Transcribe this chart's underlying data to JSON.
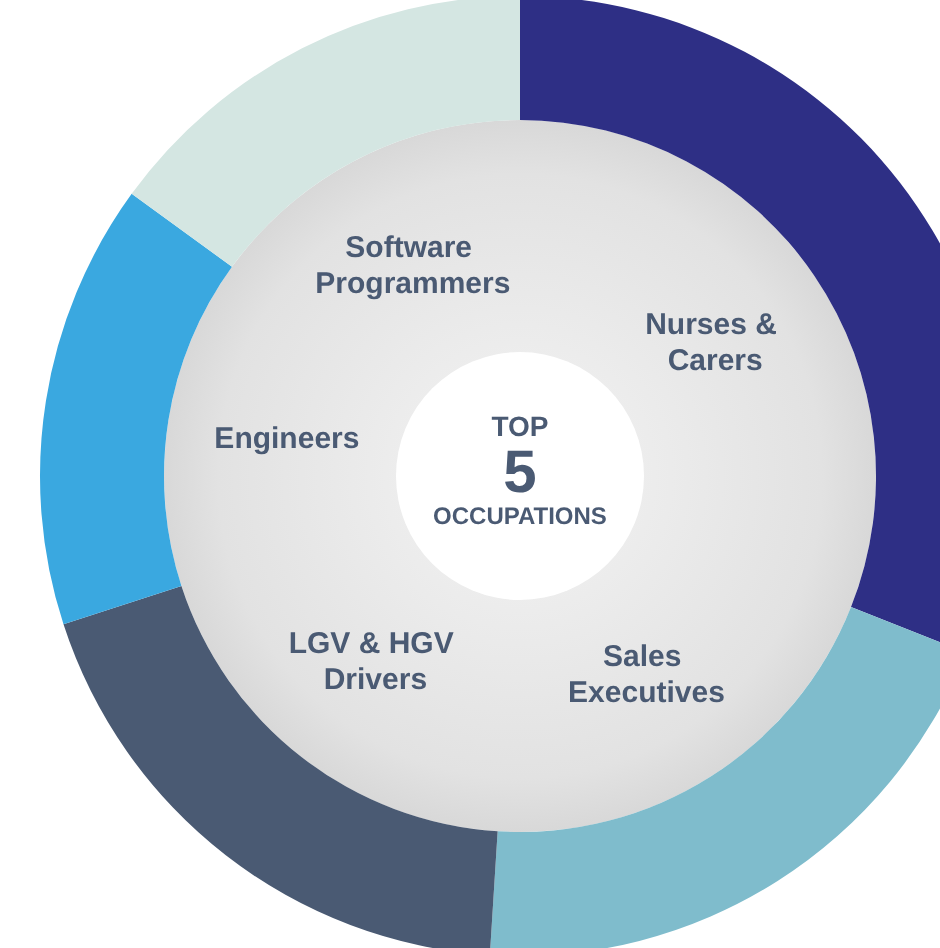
{
  "chart_data": {
    "type": "donut",
    "title": "TOP 5 OCCUPATIONS",
    "categories": [
      "Nurses & Carers",
      "Sales Executives",
      "LGV & HGV Drivers",
      "Engineers",
      "Software Programmers"
    ],
    "values": [
      31,
      20,
      19,
      15,
      15
    ],
    "colors": [
      "#2e2f85",
      "#7fbccc",
      "#4a5a73",
      "#3aa8e0",
      "#d4e6e2"
    ]
  }
}
